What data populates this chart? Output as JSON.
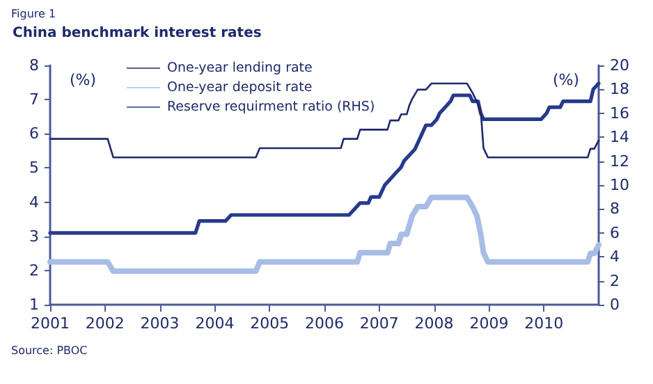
{
  "chart_data": {
    "type": "line",
    "title": "China benchmark interest rates",
    "annotations": [
      "Figure 1",
      "Source: PBOC"
    ],
    "ylabel": "(%)",
    "y2label": "(%)",
    "xlim": [
      2001,
      2011
    ],
    "xticks": [
      2001,
      2002,
      2003,
      2004,
      2005,
      2006,
      2007,
      2008,
      2009,
      2010
    ],
    "ylim": [
      1,
      8
    ],
    "yticks": [
      1,
      2,
      3,
      4,
      5,
      6,
      7,
      8
    ],
    "y2lim": [
      0,
      20
    ],
    "y2ticks": [
      0,
      2,
      4,
      6,
      8,
      10,
      12,
      14,
      16,
      18,
      20
    ],
    "grid": false,
    "legend": "top left",
    "marker": "none",
    "line_style": "solid",
    "series": [
      {
        "name": "One-year lending rate",
        "color": "#1f2a6b",
        "x": [
          2001,
          2002.05,
          2002.15,
          2004.75,
          2004.82,
          2006.3,
          2006.35,
          2006.6,
          2006.65,
          2007.15,
          2007.2,
          2007.35,
          2007.4,
          2007.5,
          2007.55,
          2007.6,
          2007.7,
          2007.85,
          2007.95,
          2008.6,
          2008.7,
          2008.78,
          2008.85,
          2008.9,
          2008.98,
          2010.8,
          2010.85,
          2010.92,
          2011
        ],
        "values": [
          5.85,
          5.85,
          5.31,
          5.31,
          5.58,
          5.58,
          5.85,
          5.85,
          6.12,
          6.12,
          6.39,
          6.39,
          6.57,
          6.57,
          6.84,
          7.02,
          7.29,
          7.29,
          7.47,
          7.47,
          7.2,
          6.93,
          6.66,
          5.58,
          5.31,
          5.31,
          5.56,
          5.56,
          5.81
        ]
      },
      {
        "name": "One-year deposit rate",
        "color": "#a7bde6",
        "x": [
          2001,
          2002.05,
          2002.15,
          2004.75,
          2004.82,
          2006.6,
          2006.65,
          2007.15,
          2007.2,
          2007.35,
          2007.4,
          2007.5,
          2007.55,
          2007.6,
          2007.7,
          2007.85,
          2007.95,
          2008.6,
          2008.7,
          2008.78,
          2008.85,
          2008.9,
          2008.98,
          2010.8,
          2010.85,
          2010.92,
          2011
        ],
        "values": [
          2.25,
          2.25,
          1.98,
          1.98,
          2.25,
          2.25,
          2.52,
          2.52,
          2.79,
          2.79,
          3.06,
          3.06,
          3.33,
          3.6,
          3.87,
          3.87,
          4.14,
          4.14,
          3.87,
          3.6,
          3.06,
          2.52,
          2.25,
          2.25,
          2.5,
          2.5,
          2.75
        ]
      },
      {
        "name": "Reserve requirment ratio (RHS)",
        "color": "#273a8c",
        "axis": "y2",
        "x": [
          2001,
          2003.65,
          2003.72,
          2004.2,
          2004.3,
          2006.45,
          2006.55,
          2006.65,
          2006.8,
          2006.85,
          2007.0,
          2007.05,
          2007.1,
          2007.2,
          2007.3,
          2007.4,
          2007.45,
          2007.55,
          2007.65,
          2007.7,
          2007.8,
          2007.85,
          2007.95,
          2008.05,
          2008.1,
          2008.2,
          2008.3,
          2008.35,
          2008.65,
          2008.7,
          2008.8,
          2008.85,
          2008.9,
          2009.95,
          2010.05,
          2010.1,
          2010.3,
          2010.35,
          2010.85,
          2010.9,
          2011
        ],
        "values": [
          6,
          6,
          7,
          7,
          7.5,
          7.5,
          8,
          8.5,
          8.5,
          9,
          9,
          9.5,
          10,
          10.5,
          11,
          11.5,
          12,
          12.5,
          13,
          13.5,
          14.5,
          15,
          15,
          15.5,
          16,
          16.5,
          17,
          17.5,
          17.5,
          17,
          17,
          16,
          15.5,
          15.5,
          16,
          16.5,
          16.5,
          17,
          17,
          18,
          18.5
        ]
      }
    ]
  }
}
